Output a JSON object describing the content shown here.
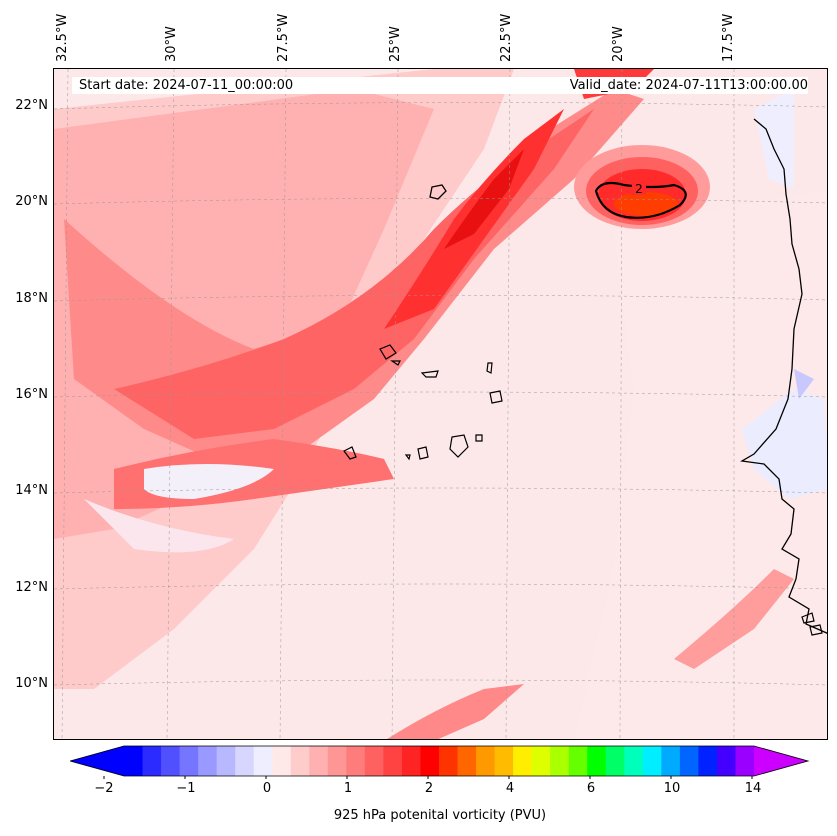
{
  "header": {
    "start_date": "Start date: 2024-07-11_00:00:00",
    "valid_date": "Valid_date: 2024-07-11T13:00:00.00"
  },
  "map": {
    "lon_labels": [
      "32.5°W",
      "30°W",
      "27.5°W",
      "25°W",
      "22.5°W",
      "20°W",
      "17.5°W"
    ],
    "lat_labels": [
      "22°N",
      "20°N",
      "18°N",
      "16°N",
      "14°N",
      "12°N",
      "10°N"
    ],
    "contour_label": "2"
  },
  "colorbar": {
    "title": "925 hPa potenital vorticity (PVU)",
    "tick_labels": [
      "−2",
      "−1",
      "0",
      "1",
      "2",
      "4",
      "6",
      "10",
      "14"
    ],
    "colors": [
      "#0000ff",
      "#2b2bff",
      "#5050ff",
      "#7575ff",
      "#9999ff",
      "#b8b8ff",
      "#d6d6ff",
      "#eeeeff",
      "#ffe8e8",
      "#ffcccc",
      "#ffb0b0",
      "#ff9696",
      "#ff7c7c",
      "#ff6060",
      "#ff4343",
      "#ff2424",
      "#ff0000",
      "#ff3300",
      "#ff6600",
      "#ff9900",
      "#ffbb00",
      "#ffee00",
      "#ddff00",
      "#aaff00",
      "#66ff00",
      "#00ff00",
      "#00ff66",
      "#00ffbb",
      "#00eeff",
      "#00aaff",
      "#0066ff",
      "#0022ff",
      "#4400ff",
      "#9900ff"
    ],
    "extend_low": "#0000ff",
    "extend_high": "#cc00ff"
  }
}
